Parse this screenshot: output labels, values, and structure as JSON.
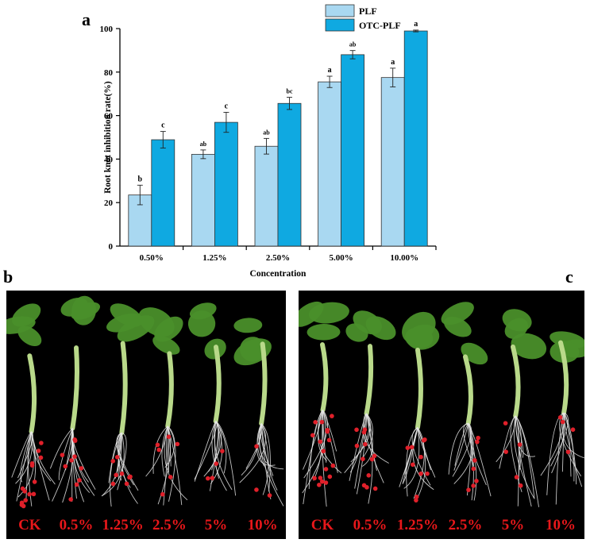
{
  "panels": {
    "a": "a",
    "b": "b",
    "c": "c"
  },
  "chart_data": {
    "type": "bar",
    "xlabel": "Concentration",
    "ylabel": "Root knot inhibition rate(%)",
    "ylim": [
      0,
      100
    ],
    "yticks": [
      0,
      20,
      40,
      60,
      80,
      100
    ],
    "categories": [
      "0.50%",
      "1.25%",
      "2.50%",
      "5.00%",
      "10.00%"
    ],
    "legend_position": "top",
    "series": [
      {
        "name": "PLF",
        "color": "#a9d8f1",
        "values": [
          23.5,
          42.2,
          45.9,
          75.5,
          77.5
        ],
        "errors": [
          4.5,
          2.0,
          3.6,
          2.6,
          4.3
        ],
        "letters": [
          "b",
          "ab",
          "ab",
          "a",
          "a"
        ]
      },
      {
        "name": "OTC-PLF",
        "color": "#0fa9e1",
        "values": [
          48.9,
          56.9,
          65.6,
          88.0,
          98.9
        ],
        "errors": [
          3.8,
          4.6,
          2.8,
          1.9,
          0.4
        ],
        "letters": [
          "c",
          "c",
          "bc",
          "ab",
          "a"
        ]
      }
    ]
  },
  "photo_b": {
    "labels": [
      "CK",
      "0.5%",
      "1.25%",
      "2.5%",
      "5%",
      "10%"
    ]
  },
  "photo_c": {
    "labels": [
      "CK",
      "0.5%",
      "1.25%",
      "2.5%",
      "5%",
      "10%"
    ]
  },
  "colors": {
    "photo_bg": "#000000",
    "label": "#e8171a",
    "leaf": "#4a8f2a",
    "stem": "#b9d98a",
    "root": "#e6e6e6",
    "knot": "#e0202a"
  }
}
